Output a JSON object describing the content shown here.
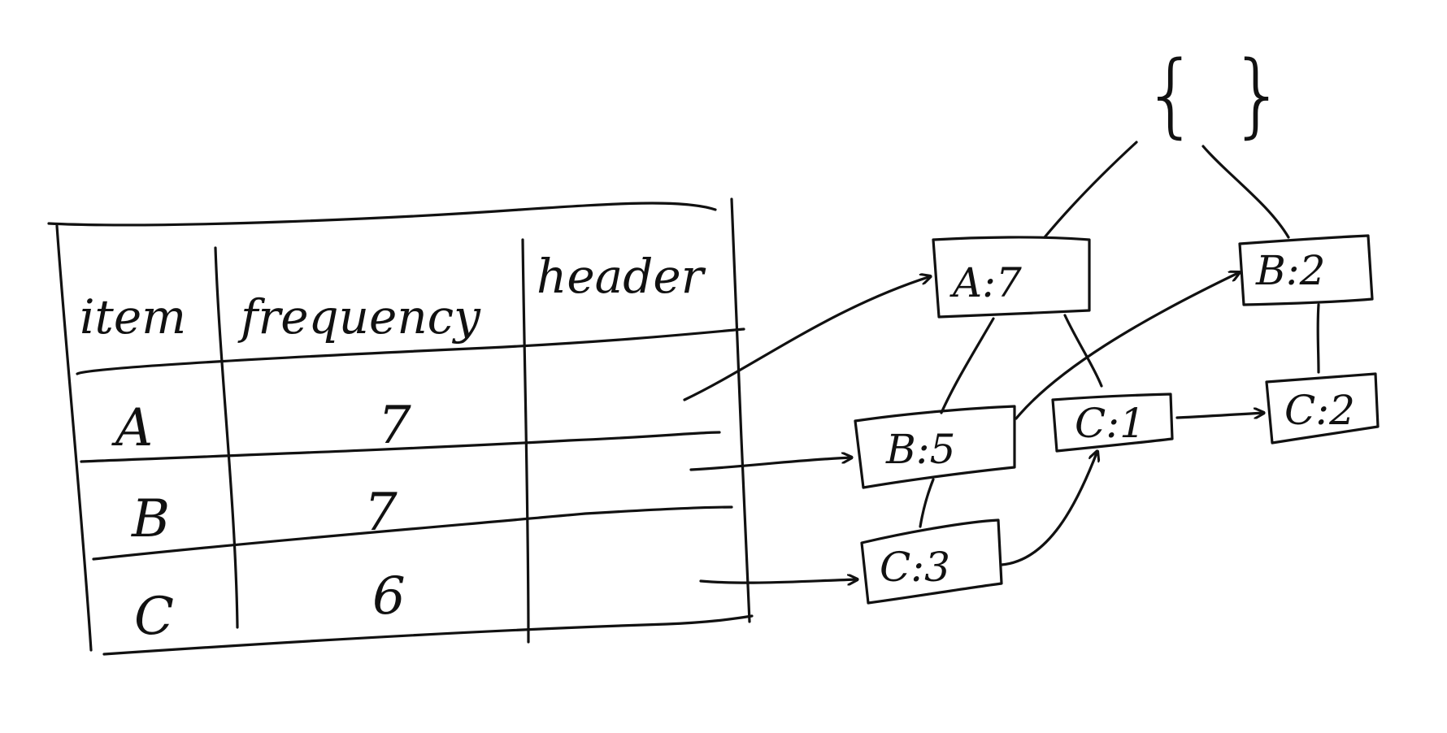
{
  "header_table": {
    "columns": [
      "item",
      "frequency",
      "header"
    ],
    "rows": [
      {
        "item": "A",
        "frequency": "7"
      },
      {
        "item": "B",
        "frequency": "7"
      },
      {
        "item": "C",
        "frequency": "6"
      }
    ]
  },
  "tree": {
    "root": "{ }",
    "nodes": [
      "A:7",
      "B:2",
      "B:5",
      "C:1",
      "C:2",
      "C:3"
    ]
  }
}
